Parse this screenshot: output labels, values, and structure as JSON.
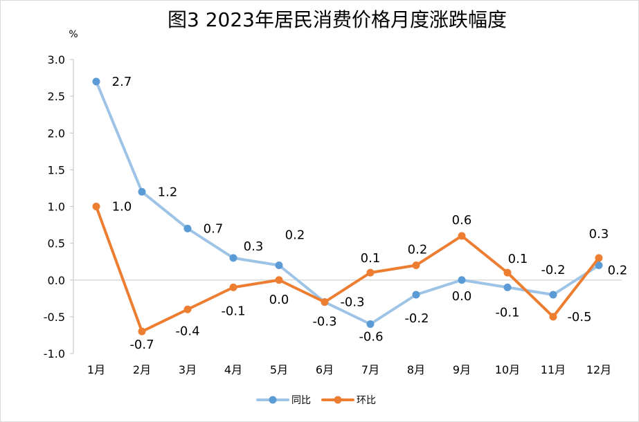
{
  "chart_data": {
    "type": "line",
    "title": "图3  2023年居民消费价格月度涨跌幅度",
    "ylabel": "%",
    "xlabel": "",
    "categories": [
      "1月",
      "2月",
      "3月",
      "4月",
      "5月",
      "6月",
      "7月",
      "8月",
      "9月",
      "10月",
      "11月",
      "12月"
    ],
    "ylim": [
      -1.0,
      3.0
    ],
    "yticks": [
      "3.0",
      "2.5",
      "2.0",
      "1.5",
      "1.0",
      "0.5",
      "0.0",
      "-0.5",
      "-1.0"
    ],
    "grid": false,
    "legend": "bottom",
    "series": [
      {
        "name": "同比",
        "color": "#9DC3E6",
        "marker_color": "#5B9BD5",
        "values": [
          2.7,
          1.2,
          0.7,
          0.3,
          0.2,
          -0.3,
          -0.6,
          -0.2,
          0.0,
          -0.1,
          -0.2,
          0.2
        ],
        "labels": [
          "2.7",
          "1.2",
          "0.7",
          "0.3",
          "0.2",
          "-0.3",
          "-0.6",
          "-0.2",
          "0.0",
          "-0.1",
          "-0.2",
          "0.2"
        ]
      },
      {
        "name": "环比",
        "color": "#ED7D31",
        "marker_color": "#ED7D31",
        "values": [
          1.0,
          -0.7,
          -0.4,
          -0.1,
          0.0,
          -0.3,
          0.1,
          0.2,
          0.6,
          0.1,
          -0.5,
          0.3
        ],
        "labels": [
          "1.0",
          "-0.7",
          "-0.4",
          "-0.1",
          "0.0",
          "-0.3",
          "0.1",
          "0.2",
          "0.6",
          "0.1",
          "-0.5",
          "0.3"
        ]
      }
    ]
  }
}
